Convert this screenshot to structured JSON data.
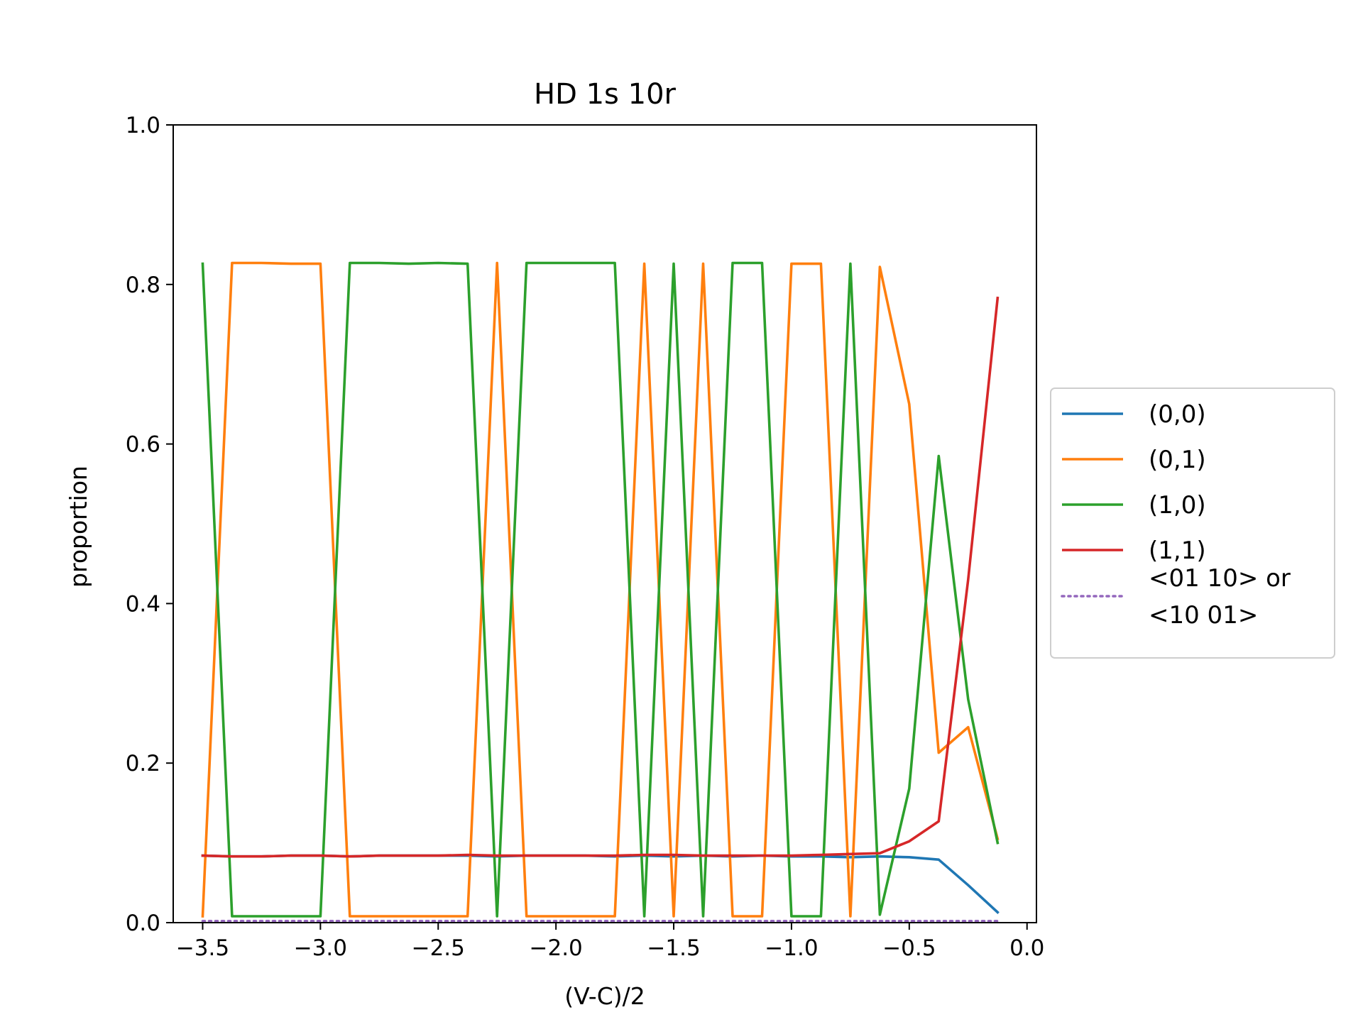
{
  "chart_data": {
    "type": "line",
    "title": "HD 1s 10r",
    "xlabel": "(V-C)/2",
    "ylabel": "proportion",
    "xlim": [
      -3.625,
      0.04
    ],
    "ylim": [
      0,
      1
    ],
    "grid": false,
    "legend_position": "center-right outside",
    "x_ticks": [
      -3.5,
      -3.0,
      -2.5,
      -2.0,
      -1.5,
      -1.0,
      -0.5,
      0.0
    ],
    "x_tick_labels": [
      "−3.5",
      "−3.0",
      "−2.5",
      "−2.0",
      "−1.5",
      "−1.0",
      "−0.5",
      "0.0"
    ],
    "y_ticks": [
      0.0,
      0.2,
      0.4,
      0.6,
      0.8,
      1.0
    ],
    "y_tick_labels": [
      "0.0",
      "0.2",
      "0.4",
      "0.6",
      "0.8",
      "1.0"
    ],
    "x": [
      -3.5,
      -3.375,
      -3.25,
      -3.125,
      -3.0,
      -2.875,
      -2.75,
      -2.625,
      -2.5,
      -2.375,
      -2.25,
      -2.125,
      -2.0,
      -1.875,
      -1.75,
      -1.625,
      -1.5,
      -1.375,
      -1.25,
      -1.125,
      -1.0,
      -0.875,
      -0.75,
      -0.625,
      -0.5,
      -0.375,
      -0.25,
      -0.125
    ],
    "series": [
      {
        "name": "(0,0)",
        "color": "#1f77b4",
        "style": "solid",
        "values": [
          0.084,
          0.083,
          0.083,
          0.084,
          0.084,
          0.083,
          0.084,
          0.084,
          0.084,
          0.084,
          0.083,
          0.084,
          0.084,
          0.084,
          0.083,
          0.084,
          0.083,
          0.084,
          0.083,
          0.084,
          0.083,
          0.083,
          0.082,
          0.083,
          0.082,
          0.079,
          0.047,
          0.013
        ]
      },
      {
        "name": "(0,1)",
        "color": "#ff7f0e",
        "style": "solid",
        "values": [
          0.008,
          0.827,
          0.827,
          0.826,
          0.826,
          0.008,
          0.008,
          0.008,
          0.008,
          0.008,
          0.827,
          0.008,
          0.008,
          0.008,
          0.008,
          0.826,
          0.008,
          0.826,
          0.008,
          0.008,
          0.826,
          0.826,
          0.008,
          0.822,
          0.65,
          0.213,
          0.245,
          0.105
        ]
      },
      {
        "name": "(1,0)",
        "color": "#2ca02c",
        "style": "solid",
        "values": [
          0.826,
          0.008,
          0.008,
          0.008,
          0.008,
          0.827,
          0.827,
          0.826,
          0.827,
          0.826,
          0.008,
          0.827,
          0.827,
          0.827,
          0.827,
          0.008,
          0.826,
          0.008,
          0.827,
          0.827,
          0.008,
          0.008,
          0.826,
          0.01,
          0.168,
          0.585,
          0.28,
          0.1
        ]
      },
      {
        "name": "(1,1)",
        "color": "#d62728",
        "style": "solid",
        "values": [
          0.084,
          0.083,
          0.083,
          0.084,
          0.084,
          0.083,
          0.084,
          0.084,
          0.084,
          0.085,
          0.084,
          0.084,
          0.084,
          0.084,
          0.084,
          0.085,
          0.085,
          0.084,
          0.084,
          0.084,
          0.084,
          0.085,
          0.086,
          0.087,
          0.102,
          0.127,
          0.43,
          0.783
        ]
      },
      {
        "name": "<01 10> or\n<10 01>",
        "color": "#9467bd",
        "style": "dotted",
        "values": [
          0.002,
          0.002,
          0.002,
          0.002,
          0.002,
          0.002,
          0.002,
          0.002,
          0.002,
          0.002,
          0.002,
          0.002,
          0.002,
          0.002,
          0.002,
          0.002,
          0.002,
          0.002,
          0.002,
          0.002,
          0.002,
          0.002,
          0.002,
          0.002,
          0.002,
          0.002,
          0.002,
          0.002
        ]
      }
    ]
  }
}
